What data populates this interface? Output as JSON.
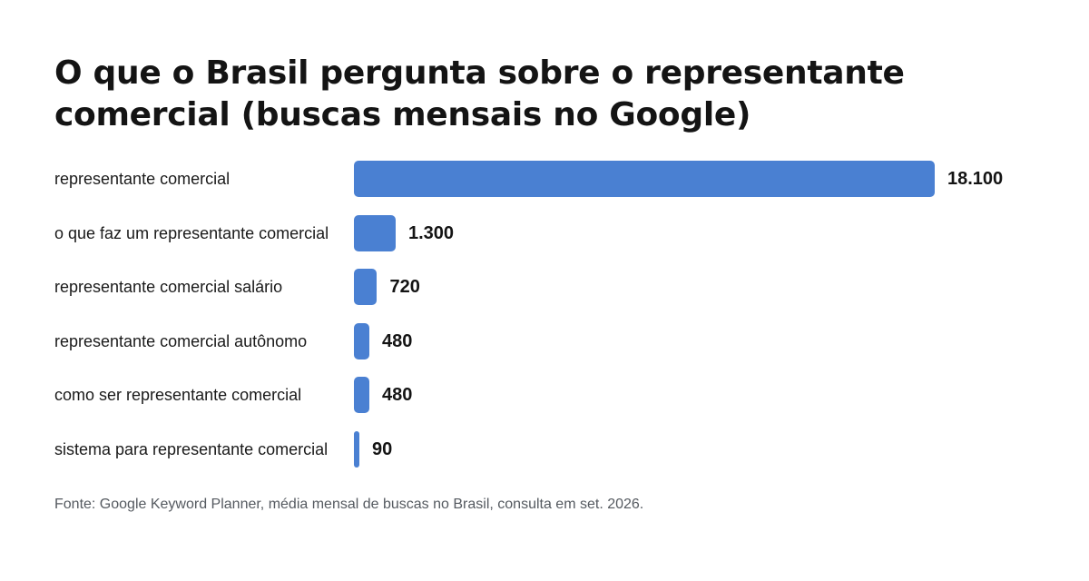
{
  "chart_data": {
    "type": "bar",
    "orientation": "horizontal",
    "title": "O que o Brasil pergunta sobre o representante comercial (buscas mensais no Google)",
    "categories": [
      "representante comercial",
      "o que faz um representante comercial",
      "representante comercial salário",
      "representante comercial autônomo",
      "como ser representante comercial",
      "sistema para representante comercial"
    ],
    "values": [
      18100,
      1300,
      720,
      480,
      480,
      90
    ],
    "value_labels": [
      "18.100",
      "1.300",
      "720",
      "480",
      "480",
      "90"
    ],
    "xlim": [
      0,
      18100
    ],
    "grid": false,
    "legend": "none",
    "colors": {
      "bar": "#4a80d2",
      "text": "#141414",
      "source": "#555a60"
    }
  },
  "source": "Fonte: Google Keyword Planner, média mensal de buscas no Brasil, consulta em set. 2026."
}
